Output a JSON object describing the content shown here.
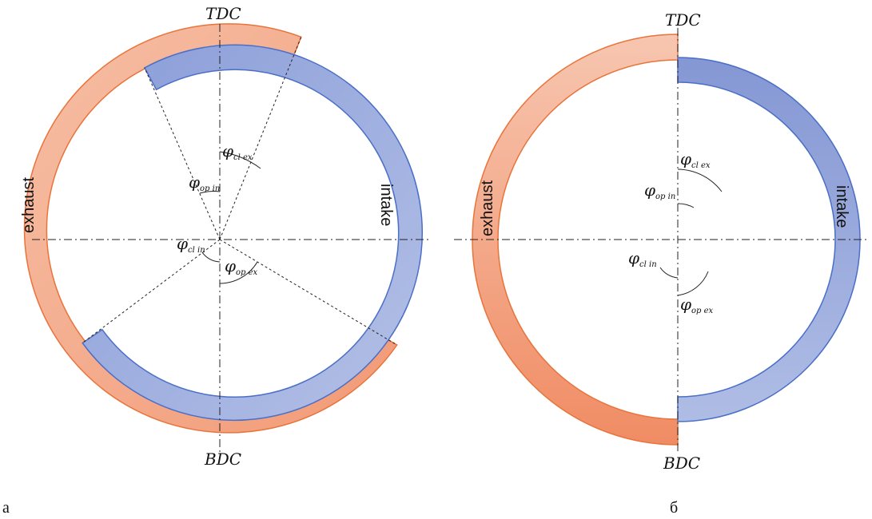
{
  "diagrams": [
    {
      "id": "a",
      "caption": "а",
      "top_label": "TDC",
      "bottom_label": "BDC",
      "exhaust_label": "exhaust",
      "intake_label": "intake",
      "angles": {
        "cl_ex": {
          "symbol": "φ",
          "sub": "cl ex"
        },
        "op_in": {
          "symbol": "φ",
          "sub": "op in"
        },
        "cl_in": {
          "symbol": "φ",
          "sub": "cl in"
        },
        "op_ex": {
          "symbol": "φ",
          "sub": "op ex"
        }
      }
    },
    {
      "id": "b",
      "caption": "б",
      "top_label": "TDC",
      "bottom_label": "BDC",
      "exhaust_label": "exhaust",
      "intake_label": "intake",
      "angles": {
        "cl_ex": {
          "symbol": "φ",
          "sub": "cl ex"
        },
        "op_in": {
          "symbol": "φ",
          "sub": "op in"
        },
        "cl_in": {
          "symbol": "φ",
          "sub": "cl in"
        },
        "op_ex": {
          "symbol": "φ",
          "sub": "op ex"
        }
      }
    }
  ],
  "colors": {
    "exhaust_fill_light": "#f6c4ad",
    "exhaust_fill_dark": "#f0906a",
    "exhaust_stroke": "#e8743b",
    "intake_fill_light": "#aab8e0",
    "intake_fill_dark": "#7f93d2",
    "intake_stroke": "#4a6fc7"
  }
}
